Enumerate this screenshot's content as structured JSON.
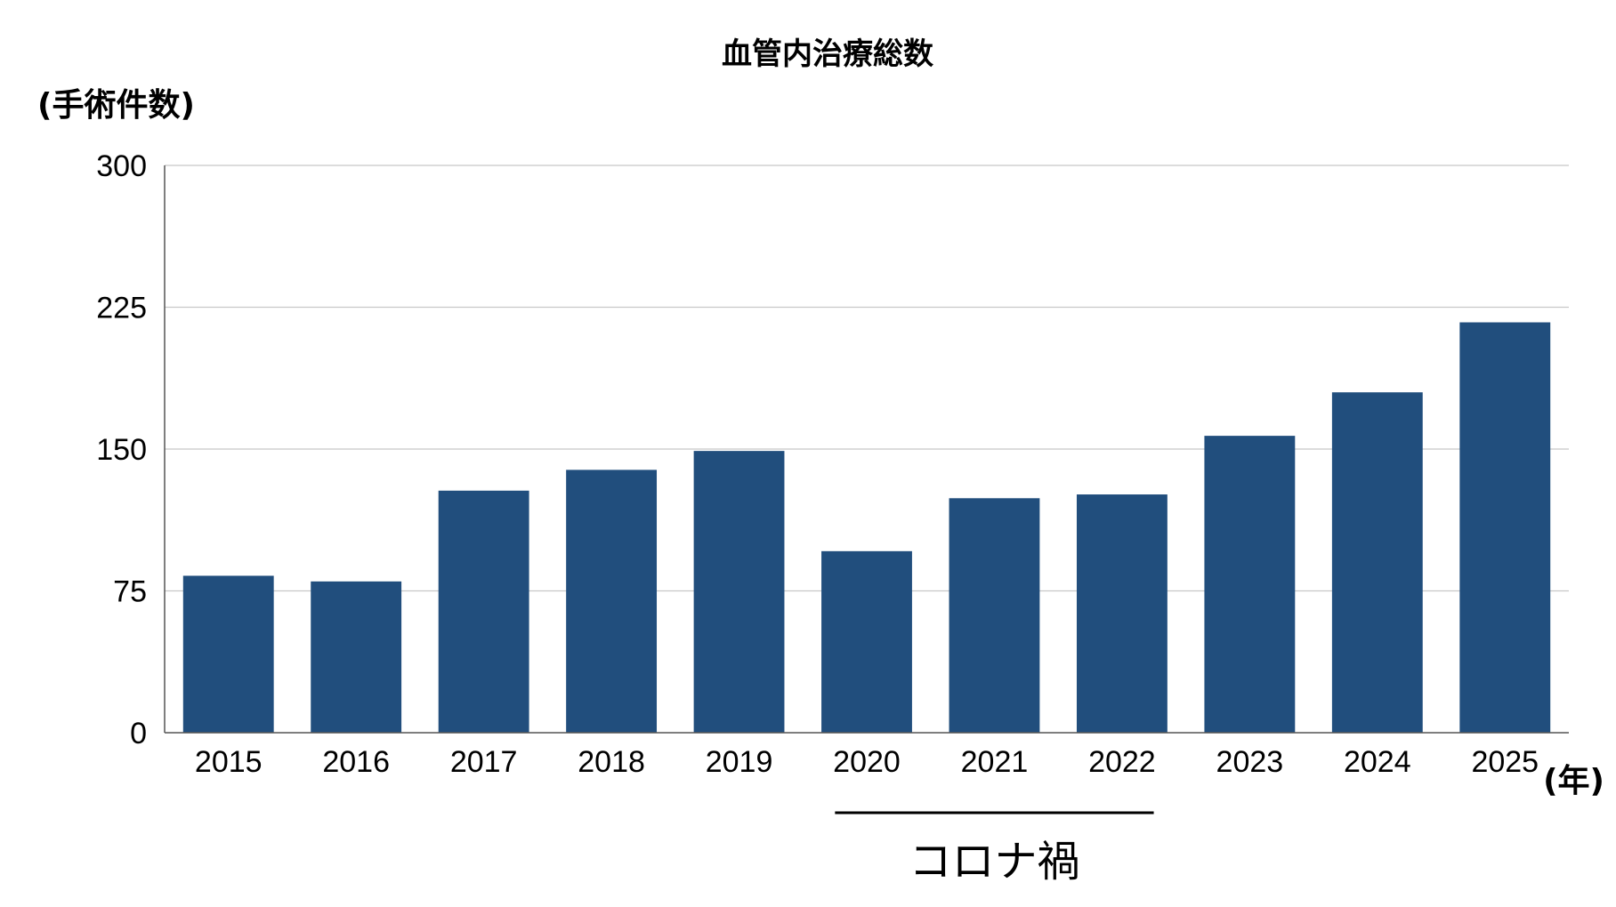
{
  "chart_data": {
    "type": "bar",
    "title": "血管内治療総数",
    "ylabel": "(手術件数)",
    "xlabel": "(年)",
    "categories": [
      "2015",
      "2016",
      "2017",
      "2018",
      "2019",
      "2020",
      "2021",
      "2022",
      "2023",
      "2024",
      "2025"
    ],
    "values": [
      83,
      80,
      128,
      139,
      149,
      96,
      124,
      126,
      157,
      180,
      217
    ],
    "ylim": [
      0,
      300
    ],
    "yticks": [
      "0",
      "75",
      "150",
      "225",
      "300"
    ],
    "grid": true,
    "bar_color": "#214e7d",
    "grid_color": "#c8c8c8",
    "annotation": {
      "label": "コロナ禍",
      "from_category": "2020",
      "to_category": "2022"
    }
  }
}
